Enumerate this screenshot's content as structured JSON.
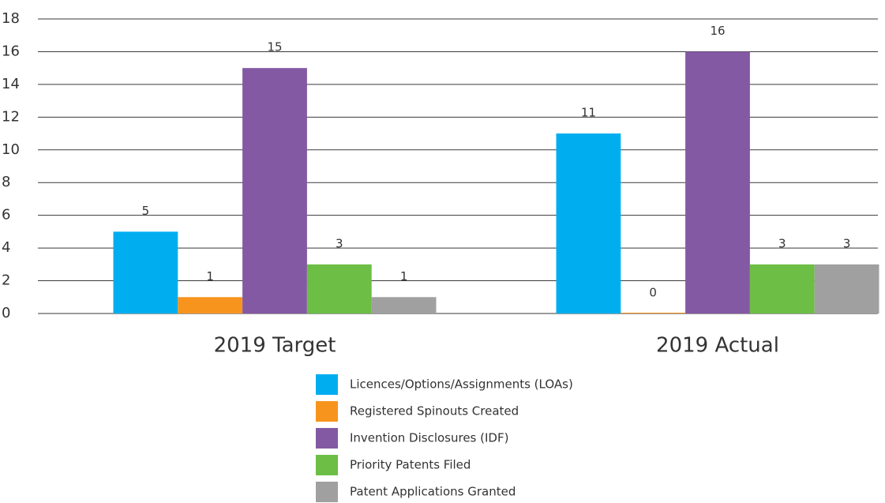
{
  "chart_data": {
    "type": "bar",
    "categories": [
      "2019 Target",
      "2019 Actual"
    ],
    "series": [
      {
        "name": "Licences/Options/Assignments (LOAs)",
        "color": "#00aeef",
        "values": [
          5,
          11
        ]
      },
      {
        "name": "Registered Spinouts Created",
        "color": "#f7941d",
        "values": [
          1,
          0
        ]
      },
      {
        "name": "Invention Disclosures (IDF)",
        "color": "#8459a4",
        "values": [
          15,
          16
        ]
      },
      {
        "name": "Priority Patents Filed",
        "color": "#6cbe45",
        "values": [
          3,
          3
        ]
      },
      {
        "name": "Patent Applications Granted",
        "color": "#a0a0a0",
        "values": [
          1,
          3
        ]
      }
    ],
    "ylim": [
      0,
      18
    ],
    "yticks": [
      0,
      2,
      4,
      6,
      8,
      10,
      12,
      14,
      16,
      18
    ],
    "grid": true,
    "legend": "bottom"
  }
}
